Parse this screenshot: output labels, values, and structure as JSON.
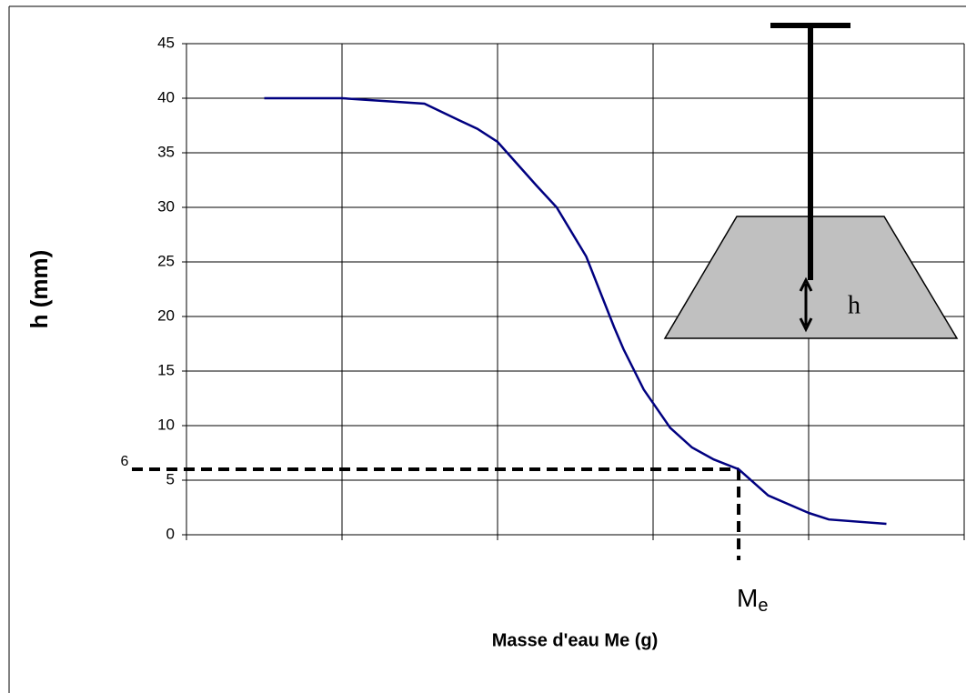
{
  "chart_data": {
    "type": "line",
    "y_label": "h (mm)",
    "x_label": "Masse d'eau Me (g)",
    "x": [
      0.5,
      1.0,
      1.53,
      1.75,
      1.87,
      2.0,
      2.25,
      2.38,
      2.57,
      2.75,
      2.81,
      2.94,
      3.11,
      3.25,
      3.39,
      3.55,
      3.74,
      4.0,
      4.13,
      4.5
    ],
    "values": [
      40,
      40,
      39.5,
      38,
      37.2,
      36,
      32,
      30,
      25.5,
      19,
      17,
      13.3,
      9.8,
      8,
      6.9,
      6,
      3.6,
      2,
      1.4,
      1
    ],
    "color": "#000080",
    "xlim": [
      0,
      5
    ],
    "xticks": [
      0,
      1,
      2,
      3,
      4,
      5
    ],
    "ylim": [
      0,
      45
    ],
    "yticks": [
      0,
      5,
      10,
      15,
      20,
      25,
      30,
      35,
      40,
      45
    ],
    "grid": true,
    "marker": {
      "x": 3.55,
      "y": 6,
      "x_label_main": "M",
      "x_label_sub": "e"
    },
    "diagram_label": "h"
  }
}
